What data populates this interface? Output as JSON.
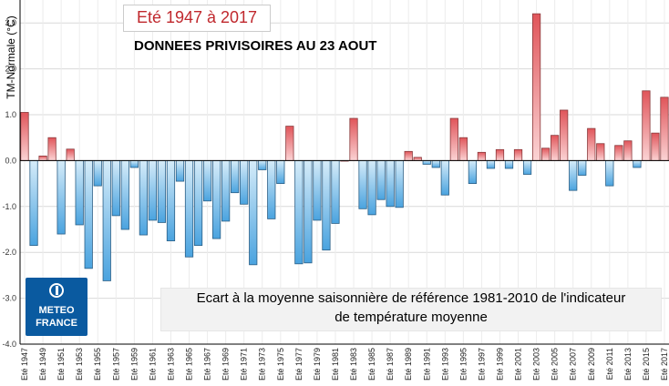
{
  "header": {
    "title": "Eté 1947 à 2017",
    "subtitle": "DONNEES PRIVISOIRES AU 23 AOUT"
  },
  "caption": {
    "line1": "Ecart à la moyenne saisonnière de référence 1981-2010 de l'indicateur",
    "line2": "de température moyenne"
  },
  "logo": {
    "line1": "METEO",
    "line2": "FRANCE",
    "icon": "meteo-france-logo-icon"
  },
  "colors": {
    "positive_fill": "#e0555a",
    "negative_fill": "#4aa3df",
    "background": "#ffffff",
    "grid": "#d9d9d9",
    "title": "#c0282d",
    "logo": "#0a5aa0"
  },
  "chart_data": {
    "type": "bar",
    "title": "Eté 1947 à 2017",
    "subtitle": "DONNEES PRIVISOIRES AU 23 AOUT",
    "xlabel": "",
    "ylabel": "TM-Normale (°C)",
    "ylim": [
      -4.0,
      3.5
    ],
    "yticks": [
      "-4.0",
      "-3.0",
      "-2.0",
      "-1.0",
      "0.0",
      "1.0",
      "2.0",
      "3.0"
    ],
    "grid": "horizontal",
    "categories": [
      "Eté 1947",
      "Eté 1948",
      "Eté 1949",
      "Eté 1950",
      "Eté 1951",
      "Eté 1952",
      "Eté 1953",
      "Eté 1954",
      "Eté 1955",
      "Eté 1956",
      "Eté 1957",
      "Eté 1958",
      "Eté 1959",
      "Eté 1960",
      "Eté 1961",
      "Eté 1962",
      "Eté 1963",
      "Eté 1964",
      "Eté 1965",
      "Eté 1966",
      "Eté 1967",
      "Eté 1968",
      "Eté 1969",
      "Eté 1970",
      "Eté 1971",
      "Eté 1972",
      "Eté 1973",
      "Eté 1974",
      "Eté 1975",
      "Eté 1976",
      "Eté 1977",
      "Eté 1978",
      "Eté 1979",
      "Eté 1980",
      "Eté 1981",
      "Eté 1982",
      "Eté 1983",
      "Eté 1984",
      "Eté 1985",
      "Eté 1986",
      "Eté 1987",
      "Eté 1988",
      "Eté 1989",
      "Eté 1990",
      "Eté 1991",
      "Eté 1992",
      "Eté 1993",
      "Eté 1994",
      "Eté 1995",
      "Eté 1996",
      "Eté 1997",
      "Eté 1998",
      "Eté 1999",
      "Eté 2000",
      "Eté 2001",
      "Eté 2002",
      "Eté 2003",
      "Eté 2004",
      "Eté 2005",
      "Eté 2006",
      "Eté 2007",
      "Eté 2008",
      "Eté 2009",
      "Eté 2010",
      "Eté 2011",
      "Eté 2012",
      "Eté 2013",
      "Eté 2014",
      "Eté 2015",
      "Eté 2016",
      "Eté 2017"
    ],
    "tick_labels": [
      "Eté 1947",
      "Eté 1949",
      "Eté 1951",
      "Eté 1953",
      "Eté 1955",
      "Eté 1957",
      "Eté 1959",
      "Eté 1961",
      "Eté 1963",
      "Eté 1965",
      "Eté 1967",
      "Eté 1969",
      "Eté 1971",
      "Eté 1973",
      "Eté 1975",
      "Eté 1977",
      "Eté 1979",
      "Eté 1981",
      "Eté 1983",
      "Eté 1985",
      "Eté 1987",
      "Eté 1989",
      "Eté 1991",
      "Eté 1993",
      "Eté 1995",
      "Eté 1997",
      "Eté 1999",
      "Eté 2001",
      "Eté 2003",
      "Eté 2005",
      "Eté 2007",
      "Eté 2009",
      "Eté 2011",
      "Eté 2013",
      "Eté 2015",
      "Eté 2017"
    ],
    "values": [
      1.05,
      -1.85,
      0.1,
      0.5,
      -1.6,
      0.25,
      -1.4,
      -2.35,
      -0.55,
      -2.62,
      -1.2,
      -1.5,
      -0.15,
      -1.62,
      -1.3,
      -1.35,
      -1.75,
      -0.45,
      -2.1,
      -1.85,
      -0.88,
      -1.7,
      -1.32,
      -0.7,
      -0.95,
      -2.27,
      -0.2,
      -1.27,
      -0.5,
      0.75,
      -2.25,
      -2.23,
      -1.3,
      -1.95,
      -1.37,
      0.0,
      0.92,
      -1.05,
      -1.18,
      -0.85,
      -1.0,
      -1.02,
      0.2,
      0.07,
      -0.08,
      -0.15,
      -0.75,
      0.92,
      0.5,
      -0.5,
      0.18,
      -0.17,
      0.24,
      -0.17,
      0.24,
      -0.3,
      3.2,
      0.27,
      0.55,
      1.1,
      -0.65,
      -0.32,
      0.7,
      0.37,
      -0.55,
      0.33,
      0.43,
      -0.15,
      1.52,
      0.6,
      1.38
    ]
  }
}
